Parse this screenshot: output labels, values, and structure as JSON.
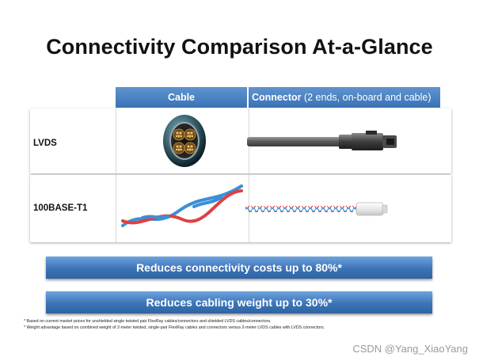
{
  "slide": {
    "title": "Connectivity Comparison At-a-Glance",
    "table": {
      "header_cable": "Cable",
      "header_connector_main": "Connector",
      "header_connector_sub": " (2 ends, on-board and cable)",
      "rows": [
        {
          "label": "LVDS"
        },
        {
          "label": "100BASE-T1"
        }
      ]
    },
    "banners": [
      "Reduces connectivity costs up to 80%*",
      "Reduces cabling weight up to 30%*"
    ],
    "footnotes": [
      "* Based on current market prices for unshielded single twisted pair FlexRay cables/connectors and shielded LVDS cables/connectors.",
      "* Weight advantage based on combined weight of 2-meter twisted, single-pair FlexRay cables and connectors versus 2-meter LVDS cables with LVDS connectors."
    ]
  },
  "watermark": "CSDN @Yang_XiaoYang",
  "colors": {
    "header_blue": "#4a82c2",
    "banner_blue": "#3c74b8",
    "wire_red": "#e04040",
    "wire_blue": "#3a8fd8"
  }
}
